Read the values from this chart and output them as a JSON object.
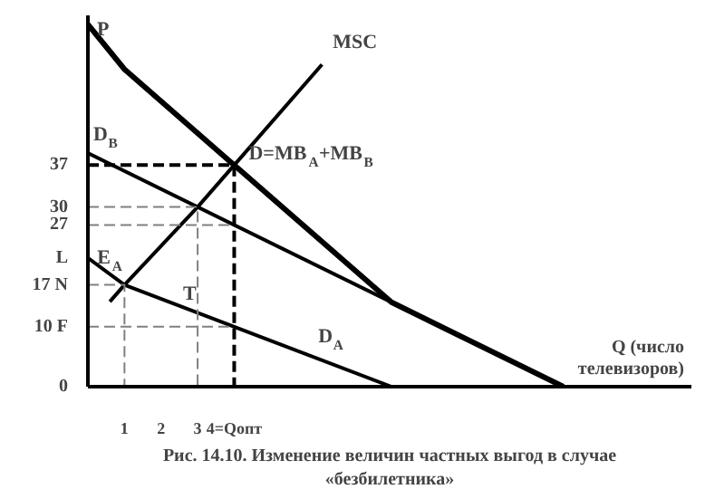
{
  "chart_data": {
    "type": "line",
    "xlabel": "Q (число телевизоров)",
    "ylabel": "P",
    "xlim": [
      0,
      16.5
    ],
    "ylim": [
      0,
      62
    ],
    "xticks": [
      1,
      2,
      3,
      {
        "value": 4,
        "label": "4=Qопт"
      }
    ],
    "yticks": [
      {
        "value": 0,
        "label": "0"
      },
      {
        "value": 10,
        "label": "10 F"
      },
      {
        "value": 17,
        "label": "17 N"
      },
      {
        "value": 21.5,
        "label": "L"
      },
      27,
      30,
      37
    ],
    "grid": false,
    "series": [
      {
        "color": "#000000",
        "x": [
          0,
          1,
          4,
          8.3,
          13
        ],
        "values": [
          60.5,
          53,
          37,
          14.1,
          0
        ]
      },
      {
        "color": "#000000",
        "x": [
          0,
          13
        ],
        "values": [
          39,
          0
        ]
      },
      {
        "color": "#000000",
        "x": [
          0,
          1,
          4,
          8.3
        ],
        "values": [
          21.5,
          17,
          10,
          0
        ]
      },
      {
        "color": "#000000",
        "x": [
          0.6,
          1,
          3,
          4,
          6.4
        ],
        "values": [
          14.2,
          17,
          30,
          37,
          53.8
        ]
      },
      {
        "color": "#000000",
        "line_style": "dashed",
        "x": [
          0,
          4,
          4
        ],
        "values": [
          37,
          37,
          0
        ]
      },
      {
        "color": "#808080",
        "line_style": "dashed",
        "x": [
          0,
          3,
          3
        ],
        "values": [
          30,
          30,
          0
        ]
      },
      {
        "color": "#808080",
        "line_style": "dashed",
        "x": [
          0,
          4
        ],
        "values": [
          27,
          27
        ]
      },
      {
        "color": "#808080",
        "line_style": "dashed",
        "x": [
          0,
          1,
          1
        ],
        "values": [
          17,
          17,
          0
        ]
      },
      {
        "color": "#808080",
        "line_style": "dashed",
        "x": [
          0,
          4
        ],
        "values": [
          10,
          10
        ]
      }
    ],
    "annotations": [
      {
        "text": "D$_{B}$",
        "x": 0,
        "y": 39
      },
      {
        "text": "E$_{A}$",
        "x": 1,
        "y": 17
      },
      {
        "text": "T",
        "x": 3,
        "y": 12.33
      },
      {
        "text": "D$_{A}$",
        "x": 6,
        "y": 5.35
      },
      {
        "text": "D=MB$_{A}$+MB$_{B}$",
        "x": 4,
        "y": 37
      },
      {
        "text": "MSC",
        "x": 6.4,
        "y": 53.8
      },
      "Рис. 14.10. Изменение величин частных выгод в случае «безбилетника»"
    ]
  }
}
